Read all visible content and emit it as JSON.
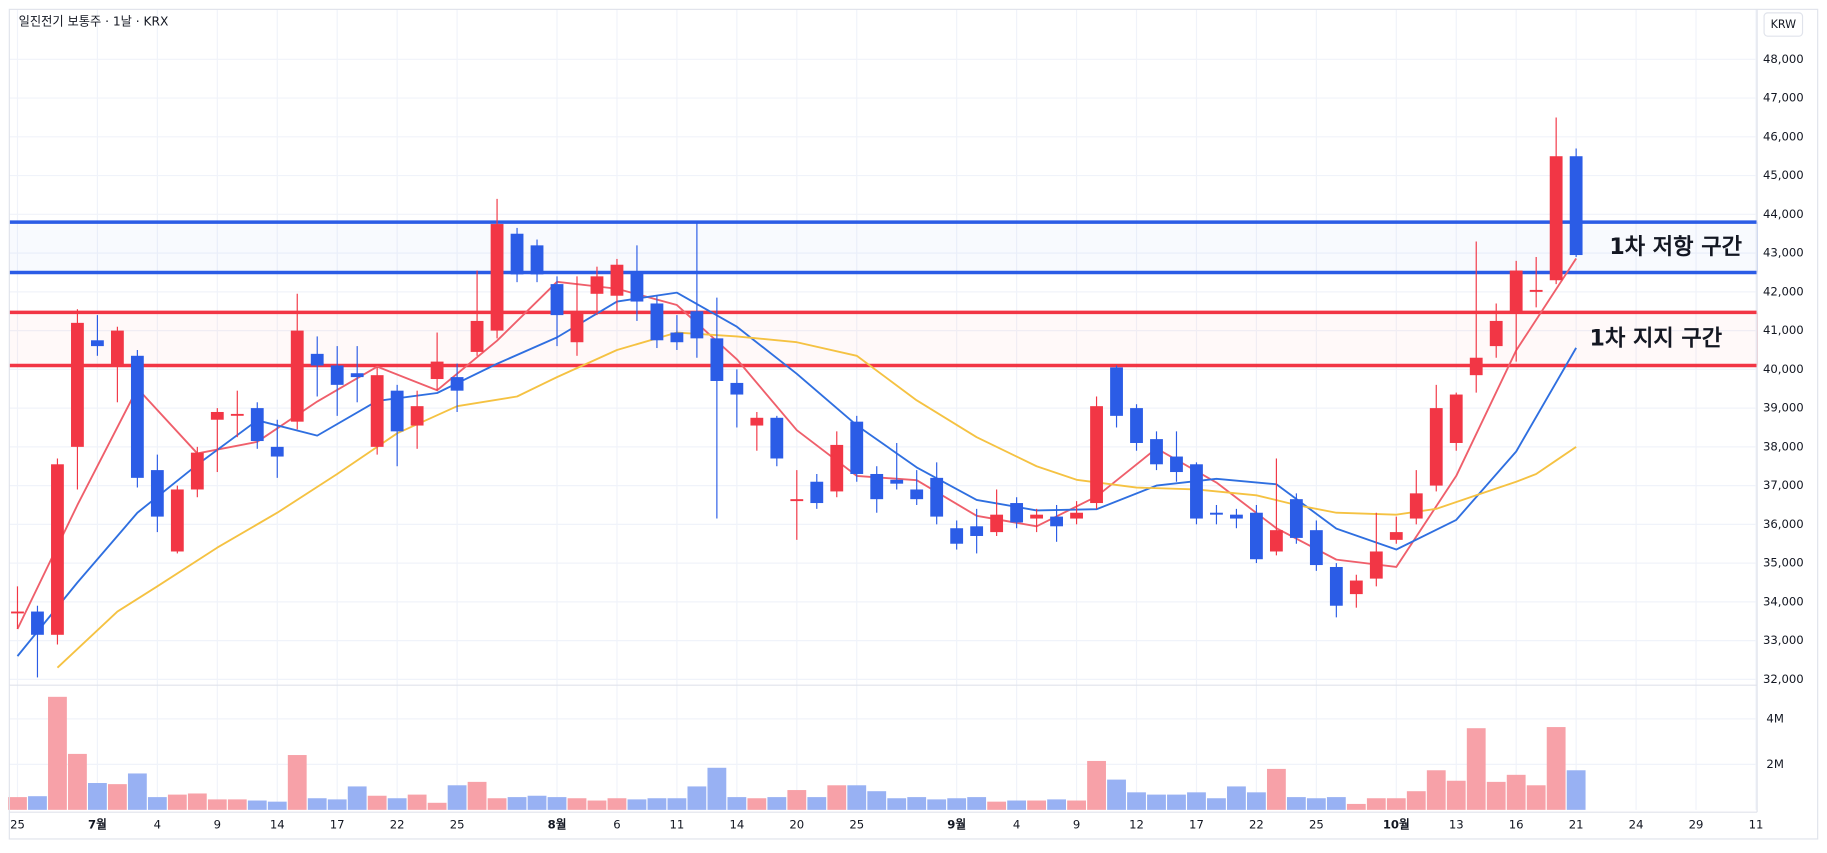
{
  "chart_data": {
    "type": "candlestick",
    "title": "일진전기 보통주 · 1날 · KRX",
    "currency": "KRW",
    "categories": [
      "25",
      null,
      null,
      null,
      "7월",
      null,
      null,
      "4",
      null,
      null,
      "9",
      null,
      null,
      "14",
      null,
      null,
      "17",
      null,
      null,
      "22",
      null,
      null,
      "25",
      null,
      null,
      null,
      null,
      "8월",
      null,
      null,
      "6",
      null,
      null,
      "11",
      null,
      null,
      "14",
      null,
      null,
      "20",
      null,
      null,
      "25",
      null,
      null,
      null,
      null,
      "9월",
      null,
      null,
      "4",
      null,
      null,
      "9",
      null,
      null,
      "12",
      null,
      null,
      "17",
      null,
      null,
      "22",
      null,
      null,
      "25",
      null,
      null,
      null,
      "10월",
      null,
      null,
      "13",
      null,
      null,
      "16",
      null,
      null,
      "21",
      null,
      null,
      "24",
      null,
      null,
      "29",
      null,
      null,
      "11"
    ],
    "open": [
      33750,
      33750,
      33150,
      38000,
      40750,
      40100,
      40350,
      37400,
      35300,
      36900,
      38700,
      38850,
      39000,
      38000,
      38650,
      40400,
      40100,
      39900,
      38000,
      39450,
      38550,
      39750,
      39800,
      40450,
      41000,
      43500,
      43200,
      42200,
      40700,
      41950,
      41900,
      42500,
      41700,
      40950,
      41500,
      40800,
      39650,
      38550,
      38750,
      36600,
      37100,
      36850,
      38650,
      37300,
      37150,
      36900,
      37200,
      35900,
      35950,
      35800,
      36550,
      36150,
      36200,
      36150,
      36550,
      40050,
      39000,
      38200,
      37750,
      37550,
      36300,
      36250,
      36300,
      35300,
      36650,
      35850,
      34900,
      34200,
      34600,
      35600,
      36150,
      37000,
      38100,
      39850,
      40600,
      41500,
      42000,
      42300,
      45500,
      null,
      null,
      null,
      null,
      null,
      null,
      null,
      null,
      null
    ],
    "high": [
      34400,
      33900,
      37700,
      41550,
      41400,
      41100,
      40500,
      37800,
      37000,
      38000,
      39000,
      39450,
      39150,
      38700,
      41950,
      40850,
      40600,
      40600,
      40050,
      39600,
      39450,
      40950,
      40150,
      42550,
      44400,
      43650,
      43350,
      42400,
      42400,
      42650,
      42850,
      43200,
      41900,
      41400,
      43800,
      41850,
      40000,
      38900,
      38800,
      37400,
      37300,
      38400,
      38800,
      37500,
      38100,
      37400,
      37600,
      36100,
      36400,
      36900,
      36700,
      36400,
      36500,
      36600,
      39300,
      40100,
      39100,
      38400,
      38400,
      37600,
      36500,
      36400,
      36500,
      37700,
      36800,
      36100,
      35000,
      34700,
      36300,
      36200,
      37400,
      39600,
      39400,
      43300,
      41700,
      42800,
      42900,
      46500,
      45700,
      null,
      null,
      null,
      null,
      null,
      null,
      null,
      null,
      null
    ],
    "low": [
      33300,
      32050,
      32900,
      36900,
      40350,
      39150,
      36950,
      35800,
      35250,
      36700,
      37350,
      38250,
      37950,
      37200,
      38450,
      39300,
      38800,
      39150,
      37800,
      37500,
      37950,
      39450,
      38900,
      40350,
      40800,
      42250,
      42250,
      40600,
      40350,
      41400,
      41500,
      41250,
      40550,
      40500,
      40300,
      36150,
      38500,
      37900,
      37500,
      35600,
      36400,
      36700,
      37100,
      36300,
      36900,
      36500,
      36000,
      35350,
      35250,
      35700,
      35900,
      35800,
      35550,
      36000,
      36400,
      38500,
      37900,
      37400,
      37100,
      36000,
      36000,
      35900,
      35000,
      35200,
      35500,
      34800,
      33600,
      33850,
      34400,
      35500,
      36000,
      36850,
      37900,
      39400,
      40300,
      40200,
      41600,
      42200,
      42900,
      null,
      null,
      null,
      null,
      null,
      null,
      null,
      null,
      null
    ],
    "close": [
      33750,
      33150,
      37550,
      41200,
      40600,
      41000,
      37200,
      36200,
      36900,
      37850,
      38900,
      38850,
      38150,
      37750,
      41000,
      40100,
      39600,
      39800,
      39850,
      38400,
      39050,
      40200,
      39450,
      41250,
      43750,
      42450,
      42450,
      41400,
      41450,
      42400,
      42700,
      41750,
      40750,
      40700,
      40800,
      39700,
      39350,
      38750,
      37700,
      36650,
      36550,
      38050,
      37300,
      36650,
      37050,
      36650,
      36200,
      35500,
      35700,
      36250,
      36050,
      36250,
      35950,
      36300,
      39050,
      38800,
      38100,
      37550,
      37350,
      36150,
      36250,
      36150,
      35100,
      35850,
      35650,
      34950,
      33900,
      34550,
      35300,
      35800,
      36800,
      39000,
      39350,
      40300,
      41250,
      42550,
      42050,
      45500,
      42950,
      null,
      null,
      null,
      null,
      null,
      null,
      null,
      null,
      null
    ],
    "volume": [
      560000,
      600000,
      4970000,
      2460000,
      1180000,
      1130000,
      1600000,
      560000,
      670000,
      720000,
      460000,
      460000,
      410000,
      360000,
      2410000,
      510000,
      460000,
      1030000,
      620000,
      510000,
      670000,
      310000,
      1080000,
      1230000,
      510000,
      560000,
      620000,
      560000,
      510000,
      410000,
      510000,
      460000,
      510000,
      510000,
      1030000,
      1850000,
      560000,
      510000,
      560000,
      870000,
      560000,
      1080000,
      1080000,
      820000,
      510000,
      560000,
      460000,
      510000,
      560000,
      360000,
      410000,
      410000,
      460000,
      410000,
      2150000,
      1330000,
      770000,
      670000,
      670000,
      770000,
      510000,
      1030000,
      770000,
      1800000,
      560000,
      510000,
      560000,
      260000,
      510000,
      510000,
      820000,
      1740000,
      1280000,
      3590000,
      1230000,
      1540000,
      1080000,
      3640000,
      1740000,
      null,
      null,
      null,
      null,
      null,
      null,
      null,
      null,
      null
    ],
    "up_color": "#f23645",
    "down_color": "#2b5ce6",
    "volume_up_color": "#f7a1a8",
    "volume_down_color": "#98b1f3",
    "ylim": [
      31850,
      49290
    ],
    "yticks": [
      {
        "value": 32000,
        "label": "32,000"
      },
      {
        "value": 33000,
        "label": "33,000"
      },
      {
        "value": 34000,
        "label": "34,000"
      },
      {
        "value": 35000,
        "label": "35,000"
      },
      {
        "value": 36000,
        "label": "36,000"
      },
      {
        "value": 37000,
        "label": "37,000"
      },
      {
        "value": 38000,
        "label": "38,000"
      },
      {
        "value": 39000,
        "label": "39,000"
      },
      {
        "value": 40000,
        "label": "40,000"
      },
      {
        "value": 41000,
        "label": "41,000"
      },
      {
        "value": 42000,
        "label": "42,000"
      },
      {
        "value": 43000,
        "label": "43,000"
      },
      {
        "value": 44000,
        "label": "44,000"
      },
      {
        "value": 45000,
        "label": "45,000"
      },
      {
        "value": 46000,
        "label": "46,000"
      },
      {
        "value": 47000,
        "label": "47,000"
      },
      {
        "value": 48000,
        "label": "48,000"
      }
    ],
    "y2lim": [
      0,
      5380000
    ],
    "y2ticks": [
      {
        "value": 2000000,
        "label": "2M"
      },
      {
        "value": 4000000,
        "label": "4M"
      }
    ],
    "grid": true,
    "series": [
      {
        "color": "#ef5f6b",
        "x": [
          0,
          3,
          6,
          9,
          12,
          15,
          18,
          21,
          24,
          27,
          30,
          33,
          36,
          39,
          42,
          45,
          48,
          51,
          54,
          57,
          60,
          63,
          66,
          69,
          72,
          75,
          78
        ],
        "values": [
          33300,
          36500,
          39510,
          37830,
          38130,
          39170,
          40070,
          39460,
          40740,
          42260,
          42080,
          41660,
          40260,
          38430,
          37250,
          37140,
          36220,
          35950,
          36720,
          37960,
          37080,
          35900,
          35090,
          34900,
          37250,
          40490,
          42860
        ]
      },
      {
        "color": "#2f6fe0",
        "x": [
          0,
          3,
          6,
          9,
          12,
          15,
          18,
          21,
          24,
          27,
          30,
          33,
          36,
          39,
          42,
          45,
          48,
          51,
          54,
          57,
          60,
          63,
          66,
          69,
          72,
          75,
          78
        ],
        "values": [
          32600,
          34500,
          36300,
          37540,
          38685,
          38290,
          39185,
          39390,
          40145,
          40825,
          41750,
          41980,
          41100,
          39885,
          38555,
          37470,
          36630,
          36360,
          36390,
          37000,
          37175,
          37035,
          35890,
          35350,
          36115,
          37880,
          40555
        ]
      },
      {
        "color": "#f5c242",
        "x": [
          2,
          5,
          7,
          10,
          13,
          16,
          19,
          22,
          25,
          27,
          30,
          33,
          36,
          39,
          42,
          45,
          48,
          51,
          53,
          56,
          59,
          62,
          64,
          66,
          69,
          71,
          73,
          75,
          76,
          77,
          78
        ],
        "values": [
          32300,
          33750,
          34400,
          35400,
          36300,
          37300,
          38350,
          39050,
          39300,
          39800,
          40500,
          40950,
          40850,
          40700,
          40350,
          39200,
          38250,
          37500,
          37150,
          36950,
          36900,
          36750,
          36500,
          36300,
          36250,
          36400,
          36750,
          37100,
          37300,
          37650,
          38000
        ]
      }
    ],
    "annotations": [
      {
        "text": "1차 저항 구간",
        "color": "#2b5ce6",
        "low": 42500,
        "high": 43800
      },
      {
        "text": "1차 지지 구간",
        "color": "#f23645",
        "low": 40100,
        "high": 41470
      }
    ]
  }
}
